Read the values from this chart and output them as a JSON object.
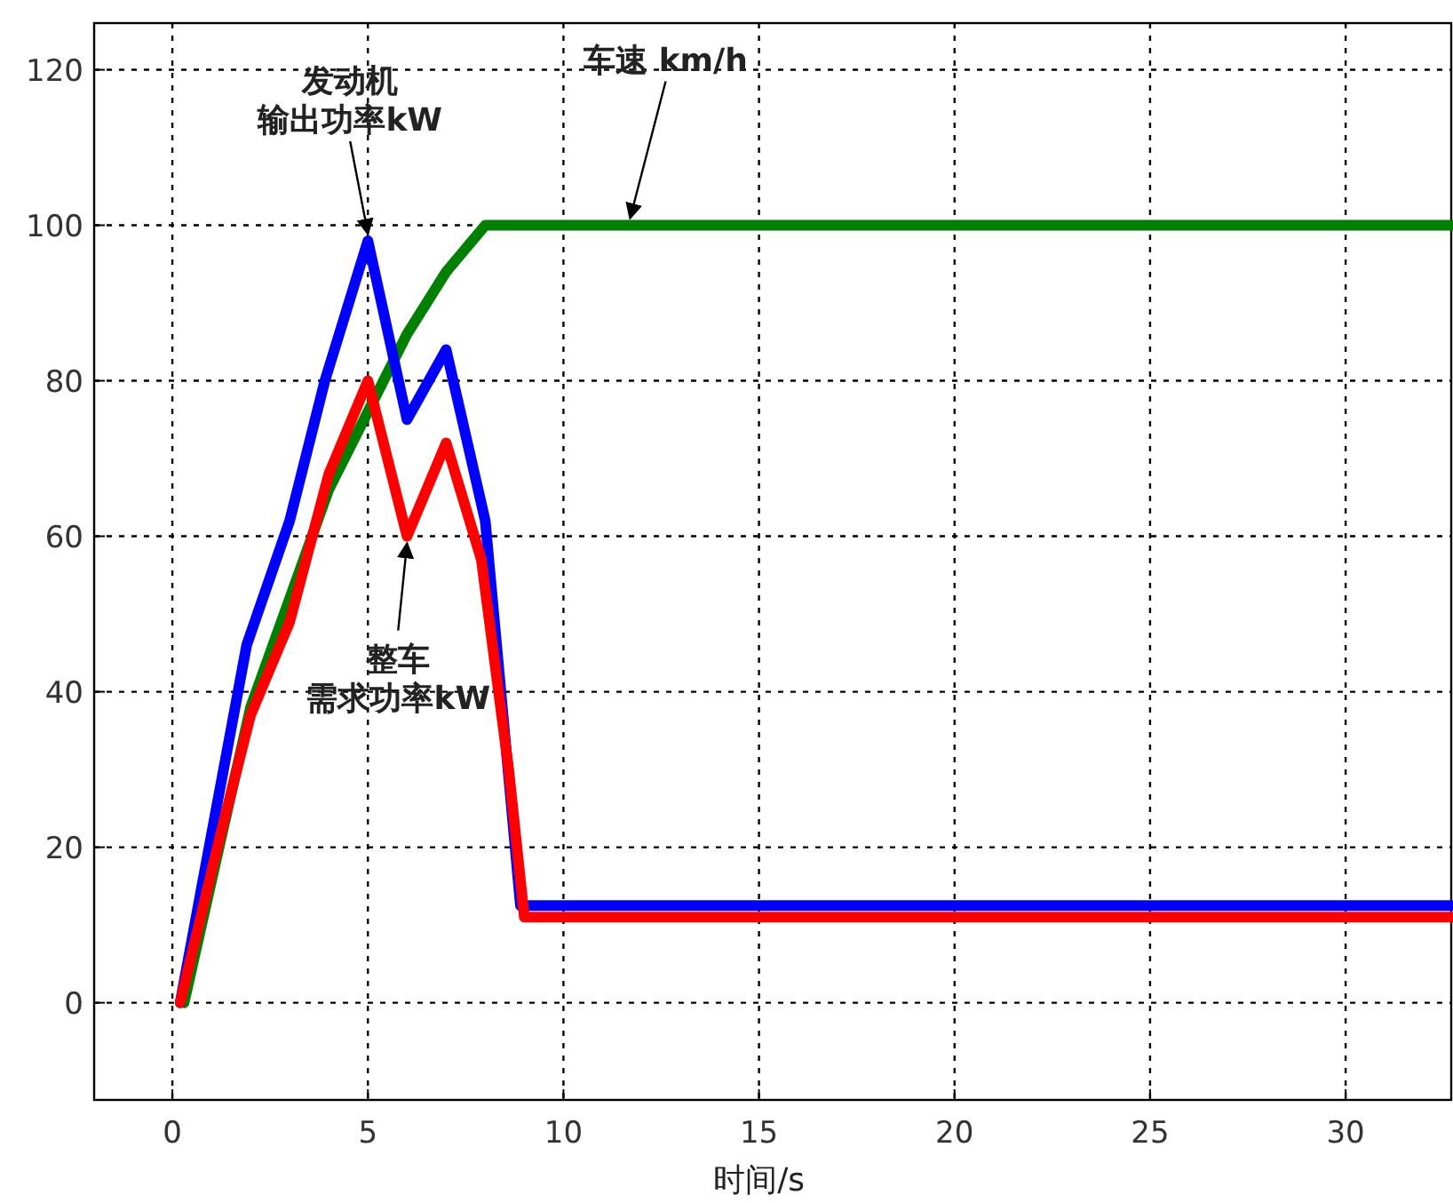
{
  "chart_data": {
    "type": "line",
    "xlabel": "时间/s",
    "xlim": [
      -2,
      32.7
    ],
    "ylim": [
      -12.5,
      126
    ],
    "xticks": [
      0,
      5,
      10,
      15,
      20,
      25,
      30
    ],
    "yticks": [
      0,
      20,
      40,
      60,
      80,
      100,
      120
    ],
    "grid": true,
    "line_style": "solid",
    "marker": "none",
    "series": [
      {
        "name": "车速 km/h",
        "color": "#008000",
        "x": [
          0.3,
          2,
          3,
          4,
          5,
          6,
          7,
          8,
          32.7
        ],
        "values": [
          0,
          38,
          52,
          66,
          76,
          86,
          94,
          100,
          100
        ]
      },
      {
        "name": "发动机输出功率kW",
        "color": "#0000ff",
        "x": [
          0.2,
          1.9,
          3,
          3.9,
          5,
          6,
          7,
          8,
          8.9,
          32.7
        ],
        "values": [
          0,
          46,
          62,
          80,
          98,
          75,
          84,
          62,
          12.5,
          12.5
        ]
      },
      {
        "name": "整车需求功率kW",
        "color": "#ff0000",
        "x": [
          0.2,
          1.2,
          2,
          3,
          4,
          5,
          6,
          7,
          7.9,
          8.6,
          9,
          32.7
        ],
        "values": [
          0,
          21,
          37,
          49,
          68,
          80,
          60,
          72,
          57,
          30,
          11,
          11
        ]
      }
    ]
  }
}
